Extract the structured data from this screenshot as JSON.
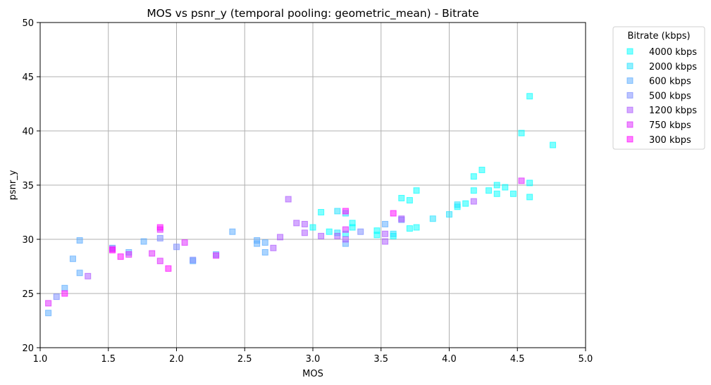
{
  "chart_data": {
    "type": "scatter",
    "title": "MOS vs psnr_y (temporal pooling: geometric_mean) - Bitrate",
    "xlabel": "MOS",
    "ylabel": "psnr_y",
    "xlim": [
      1.0,
      5.0
    ],
    "ylim": [
      20,
      50
    ],
    "xticks": [
      "1.0",
      "1.5",
      "2.0",
      "2.5",
      "3.0",
      "3.5",
      "4.0",
      "4.5",
      "5.0"
    ],
    "yticks": [
      "20",
      "25",
      "30",
      "35",
      "40",
      "45",
      "50"
    ],
    "grid": true,
    "legend": {
      "title": "Bitrate (kbps)",
      "placement": "outside right, top"
    },
    "series": [
      {
        "name": "4000 kbps",
        "color": "#00ffff",
        "points": [
          [
            4.59,
            43.2
          ],
          [
            4.53,
            39.8
          ],
          [
            4.76,
            38.7
          ],
          [
            4.24,
            36.4
          ],
          [
            4.18,
            35.8
          ],
          [
            4.59,
            35.2
          ],
          [
            4.35,
            35.0
          ],
          [
            4.41,
            34.8
          ],
          [
            4.29,
            34.5
          ],
          [
            4.18,
            34.5
          ],
          [
            4.35,
            34.2
          ],
          [
            4.47,
            34.2
          ],
          [
            4.59,
            33.9
          ],
          [
            4.12,
            33.3
          ],
          [
            4.06,
            33.0
          ],
          [
            3.76,
            34.5
          ],
          [
            3.65,
            33.8
          ],
          [
            3.71,
            33.6
          ],
          [
            3.29,
            31.5
          ],
          [
            3.29,
            31.1
          ],
          [
            3.71,
            31.0
          ],
          [
            3.76,
            31.1
          ],
          [
            3.47,
            30.8
          ],
          [
            3.47,
            30.4
          ],
          [
            3.59,
            30.3
          ],
          [
            3.06,
            32.5
          ],
          [
            3.0,
            31.1
          ],
          [
            3.12,
            30.7
          ],
          [
            3.24,
            30.5
          ]
        ]
      },
      {
        "name": "2000 kbps",
        "color": "#1ee1ff",
        "points": [
          [
            3.88,
            31.9
          ],
          [
            4.0,
            32.3
          ],
          [
            4.06,
            33.2
          ],
          [
            3.59,
            30.5
          ],
          [
            3.18,
            32.6
          ],
          [
            3.24,
            32.4
          ],
          [
            3.18,
            30.6
          ]
        ]
      },
      {
        "name": "600 kbps",
        "color": "#56a9ff",
        "points": [
          [
            1.29,
            29.9
          ],
          [
            1.24,
            28.2
          ],
          [
            1.29,
            26.9
          ],
          [
            1.18,
            25.5
          ],
          [
            1.06,
            23.2
          ],
          [
            1.76,
            29.8
          ],
          [
            1.53,
            29.2
          ],
          [
            1.65,
            28.8
          ],
          [
            2.41,
            30.7
          ],
          [
            2.59,
            29.9
          ],
          [
            2.59,
            29.6
          ],
          [
            2.65,
            29.7
          ],
          [
            2.65,
            28.8
          ],
          [
            2.29,
            28.6
          ],
          [
            2.12,
            28.0
          ],
          [
            3.53,
            31.4
          ],
          [
            3.24,
            29.6
          ]
        ]
      },
      {
        "name": "500 kbps",
        "color": "#7788ff",
        "points": [
          [
            1.12,
            24.7
          ],
          [
            1.88,
            30.1
          ],
          [
            2.0,
            29.3
          ],
          [
            2.12,
            28.1
          ],
          [
            3.35,
            30.7
          ],
          [
            3.65,
            31.8
          ]
        ]
      },
      {
        "name": "1200 kbps",
        "color": "#aa55ff",
        "points": [
          [
            1.35,
            26.6
          ],
          [
            2.82,
            33.7
          ],
          [
            2.88,
            31.5
          ],
          [
            2.94,
            31.4
          ],
          [
            2.94,
            30.6
          ],
          [
            2.76,
            30.2
          ],
          [
            2.71,
            29.2
          ],
          [
            3.06,
            30.3
          ],
          [
            3.18,
            30.3
          ],
          [
            3.24,
            30.0
          ],
          [
            3.53,
            30.5
          ],
          [
            3.53,
            29.8
          ],
          [
            3.65,
            31.9
          ],
          [
            4.18,
            33.5
          ]
        ]
      },
      {
        "name": "750 kbps",
        "color": "#dd22ff",
        "points": [
          [
            1.06,
            24.1
          ],
          [
            1.53,
            29.1
          ],
          [
            1.65,
            28.6
          ],
          [
            1.82,
            28.7
          ],
          [
            1.88,
            28.0
          ],
          [
            1.88,
            30.9
          ],
          [
            2.06,
            29.7
          ],
          [
            2.29,
            28.5
          ],
          [
            3.24,
            30.9
          ],
          [
            4.53,
            35.4
          ]
        ]
      },
      {
        "name": "300 kbps",
        "color": "#ff00ff",
        "points": [
          [
            1.18,
            25.0
          ],
          [
            1.59,
            28.4
          ],
          [
            1.53,
            29.0
          ],
          [
            1.88,
            31.1
          ],
          [
            1.94,
            27.3
          ],
          [
            3.24,
            32.6
          ],
          [
            3.59,
            32.4
          ]
        ]
      }
    ]
  }
}
